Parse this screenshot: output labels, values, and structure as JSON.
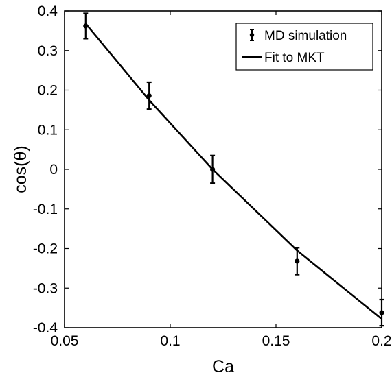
{
  "chart_data": {
    "type": "scatter",
    "xlabel": "Ca",
    "ylabel": "cos(θ)",
    "xlim": [
      0.05,
      0.2
    ],
    "ylim": [
      -0.4,
      0.4
    ],
    "xticks": [
      0.05,
      0.1,
      0.15,
      0.2
    ],
    "xtick_labels": [
      "0.05",
      "0.1",
      "0.15",
      "0.2"
    ],
    "yticks": [
      0.4,
      0.3,
      0.2,
      0.1,
      0,
      -0.1,
      -0.2,
      -0.3,
      -0.4
    ],
    "ytick_labels": [
      "0.4",
      "0.3",
      "0.2",
      "0.1",
      "0",
      "-0.1",
      "-0.2",
      "-0.3",
      "-0.4"
    ],
    "grid": false,
    "legend_position": "top-right",
    "series": [
      {
        "name": "MD simulation",
        "kind": "errorbar",
        "color": "#000000",
        "x": [
          0.06,
          0.09,
          0.12,
          0.16,
          0.2
        ],
        "y": [
          0.362,
          0.186,
          0.0,
          -0.232,
          -0.362
        ],
        "yerr": [
          0.032,
          0.034,
          0.035,
          0.034,
          0.033
        ]
      },
      {
        "name": "Fit to MKT",
        "kind": "line",
        "color": "#000000",
        "x": [
          0.06,
          0.09,
          0.12,
          0.16,
          0.2
        ],
        "y": [
          0.368,
          0.175,
          0.0,
          -0.205,
          -0.378
        ]
      }
    ]
  }
}
